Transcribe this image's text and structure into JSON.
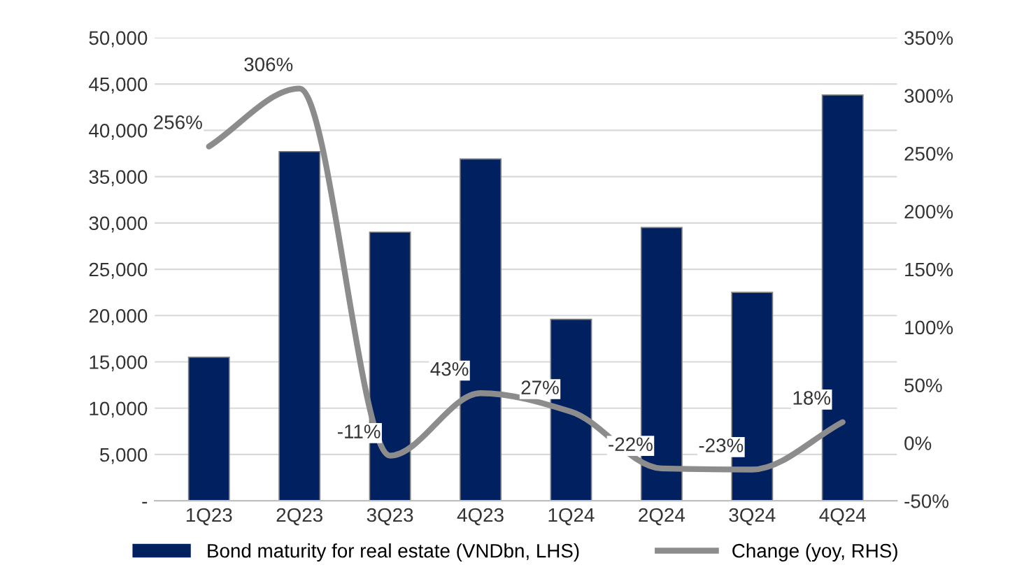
{
  "chart_data": {
    "type": "bar",
    "categories": [
      "1Q23",
      "2Q23",
      "3Q23",
      "4Q23",
      "1Q24",
      "2Q24",
      "3Q24",
      "4Q24"
    ],
    "series": [
      {
        "name": "Bond maturity for real estate (VNDbn, LHS)",
        "color": "#002060",
        "values": [
          15500,
          37700,
          29000,
          36900,
          19600,
          29500,
          22500,
          43800
        ]
      },
      {
        "name": "Change (yoy, RHS)",
        "type": "line",
        "axis": "y2",
        "color": "#8c8c8c",
        "values": [
          256,
          306,
          -11,
          43,
          27,
          -22,
          -23,
          18
        ],
        "value_labels": [
          "256%",
          "306%",
          "-11%",
          "43%",
          "27%",
          "-22%",
          "-23%",
          "18%"
        ]
      }
    ],
    "ylim": [
      0,
      50000
    ],
    "yticks": [
      {
        "value": 0,
        "label": "-"
      },
      {
        "value": 5000,
        "label": "5,000"
      },
      {
        "value": 10000,
        "label": "10,000"
      },
      {
        "value": 15000,
        "label": "15,000"
      },
      {
        "value": 20000,
        "label": "20,000"
      },
      {
        "value": 25000,
        "label": "25,000"
      },
      {
        "value": 30000,
        "label": "30,000"
      },
      {
        "value": 35000,
        "label": "35,000"
      },
      {
        "value": 40000,
        "label": "40,000"
      },
      {
        "value": 45000,
        "label": "45,000"
      },
      {
        "value": 50000,
        "label": "50,000"
      }
    ],
    "y2lim": [
      -50,
      350
    ],
    "y2ticks": [
      {
        "value": -50,
        "label": "-50%"
      },
      {
        "value": 0,
        "label": "0%"
      },
      {
        "value": 50,
        "label": "50%"
      },
      {
        "value": 100,
        "label": "100%"
      },
      {
        "value": 150,
        "label": "150%"
      },
      {
        "value": 200,
        "label": "200%"
      },
      {
        "value": 250,
        "label": "250%"
      },
      {
        "value": 300,
        "label": "300%"
      },
      {
        "value": 350,
        "label": "350%"
      }
    ],
    "grid": "y",
    "legend": "bottom"
  }
}
